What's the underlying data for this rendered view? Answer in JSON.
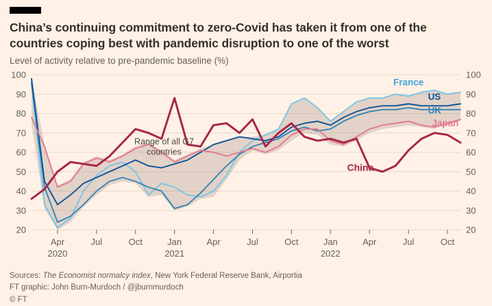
{
  "header": {
    "title": "China’s continuing commitment to zero-Covid has taken it from one of the countries coping best with pandemic disruption to one of the worst",
    "subtitle": "Level of activity relative to pre-pandemic baseline (%)"
  },
  "chart_data": {
    "type": "line",
    "title": "China’s continuing commitment to zero-Covid has taken it from one of the countries coping best with pandemic disruption to one of the worst",
    "ylabel": "Level of activity relative to pre-pandemic baseline (%)",
    "xlabel": "",
    "ylim": [
      20,
      100
    ],
    "yticks": [
      20,
      30,
      40,
      50,
      60,
      70,
      80,
      90,
      100
    ],
    "grid": true,
    "grid_color": "#E6D9CB",
    "axis_color": "#66605C",
    "months": [
      "Feb 2020",
      "Mar 2020",
      "Apr 2020",
      "May 2020",
      "Jun 2020",
      "Jul 2020",
      "Aug 2020",
      "Sep 2020",
      "Oct 2020",
      "Nov 2020",
      "Dec 2020",
      "Jan 2021",
      "Feb 2021",
      "Mar 2021",
      "Apr 2021",
      "May 2021",
      "Jun 2021",
      "Jul 2021",
      "Aug 2021",
      "Sep 2021",
      "Oct 2021",
      "Nov 2021",
      "Dec 2021",
      "Jan 2022",
      "Feb 2022",
      "Mar 2022",
      "Apr 2022",
      "May 2022",
      "Jun 2022",
      "Jul 2022",
      "Aug 2022",
      "Sep 2022",
      "Oct 2022",
      "Nov 2022"
    ],
    "xticks": [
      {
        "i": 2,
        "label": "Apr",
        "year": "2020"
      },
      {
        "i": 5,
        "label": "Jul"
      },
      {
        "i": 8,
        "label": "Oct"
      },
      {
        "i": 11,
        "label": "Jan",
        "year": "2021"
      },
      {
        "i": 14,
        "label": "Apr"
      },
      {
        "i": 17,
        "label": "Jul"
      },
      {
        "i": 20,
        "label": "Oct"
      },
      {
        "i": 23,
        "label": "Jan",
        "year": "2022"
      },
      {
        "i": 26,
        "label": "Apr"
      },
      {
        "i": 29,
        "label": "Jul"
      },
      {
        "i": 32,
        "label": "Oct"
      }
    ],
    "band": {
      "name": "Range of all G7 countries",
      "color": "#99827A",
      "opacity": 0.28,
      "min": [
        75,
        31,
        20,
        24,
        32,
        38,
        43,
        45,
        44,
        37,
        38,
        30,
        32,
        36,
        37,
        46,
        56,
        61,
        59,
        61,
        66,
        70,
        69,
        64,
        63,
        66,
        70,
        72,
        73,
        74,
        73,
        72,
        75,
        76
      ],
      "max": [
        98,
        64,
        43,
        46,
        55,
        58,
        56,
        59,
        63,
        65,
        61,
        56,
        59,
        62,
        64,
        66,
        68,
        68,
        69,
        72,
        85,
        88,
        83,
        76,
        81,
        86,
        88,
        88,
        90,
        89,
        91,
        92,
        90,
        91
      ]
    },
    "series": [
      {
        "name": "France",
        "color": "#79C5E8",
        "width": 1.9,
        "values": [
          95,
          33,
          21,
          26,
          40,
          48,
          53,
          55,
          50,
          38,
          44,
          42,
          38,
          37,
          40,
          48,
          60,
          66,
          69,
          72,
          85,
          88,
          83,
          76,
          81,
          86,
          88,
          88,
          90,
          89,
          91,
          92,
          90,
          91
        ]
      },
      {
        "name": "UK",
        "color": "#3585B5",
        "width": 1.9,
        "values": [
          96,
          42,
          24,
          27,
          33,
          40,
          45,
          47,
          45,
          42,
          40,
          31,
          33,
          39,
          46,
          53,
          59,
          63,
          65,
          67,
          71,
          73,
          71,
          72,
          76,
          79,
          81,
          82,
          82,
          83,
          82,
          82,
          82,
          82
        ]
      },
      {
        "name": "US",
        "color": "#0F5499",
        "width": 1.9,
        "values": [
          98,
          45,
          33,
          38,
          44,
          47,
          50,
          53,
          56,
          53,
          52,
          54,
          56,
          60,
          64,
          66,
          68,
          67,
          66,
          68,
          73,
          75,
          76,
          74,
          78,
          81,
          83,
          84,
          84,
          85,
          84,
          84,
          84,
          85
        ]
      },
      {
        "name": "Japan",
        "color": "#E4798F",
        "width": 1.9,
        "values": [
          78,
          63,
          42,
          45,
          54,
          57,
          55,
          58,
          62,
          64,
          60,
          55,
          58,
          61,
          60,
          58,
          60,
          62,
          60,
          63,
          69,
          72,
          72,
          66,
          64,
          68,
          72,
          74,
          75,
          76,
          74,
          73,
          75,
          77
        ]
      },
      {
        "name": "China",
        "color": "#A62846",
        "width": 3,
        "values": [
          36,
          41,
          50,
          55,
          54,
          53,
          58,
          65,
          72,
          70,
          67,
          88,
          64,
          63,
          74,
          75,
          70,
          77,
          63,
          70,
          75,
          68,
          66,
          67,
          65,
          67,
          52,
          50,
          53,
          61,
          67,
          70,
          69,
          65
        ]
      }
    ],
    "labels": [
      {
        "text": "France",
        "i": 29.0,
        "v": 94.5,
        "color": "#45A5D6",
        "size": 13.5,
        "weight": 700,
        "anchor": "middle"
      },
      {
        "text": "US",
        "i": 30.5,
        "v": 87,
        "color": "#0F5499",
        "size": 13.5,
        "weight": 700,
        "anchor": "start"
      },
      {
        "text": "UK",
        "i": 30.5,
        "v": 80,
        "color": "#3585B5",
        "size": 13.5,
        "weight": 700,
        "anchor": "start"
      },
      {
        "text": "Japan",
        "i": 30.8,
        "v": 73.5,
        "color": "#E4798F",
        "size": 13.5,
        "weight": 700,
        "anchor": "start"
      },
      {
        "text": "China",
        "i": 25.3,
        "v": 50.5,
        "color": "#A62846",
        "size": 14,
        "weight": 700,
        "anchor": "middle"
      }
    ],
    "annotations": [
      {
        "lines": [
          "Range of all G7",
          "countries"
        ],
        "i": 10.2,
        "v": 64,
        "color": "#4D4845",
        "size": 12.5
      }
    ],
    "legend_position": "inline-labels"
  },
  "footer": {
    "sources_prefix": "Sources: ",
    "sources_italic": "The Economist normalcy index",
    "sources_suffix": ", New York Federal Reserve Bank, Airportia",
    "credit": "FT graphic: John Burn-Murdoch / @jburnmurdoch",
    "copyright": "© FT"
  }
}
